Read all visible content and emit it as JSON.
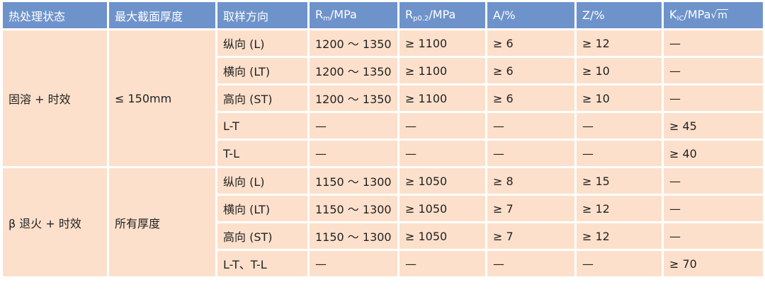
{
  "header": {
    "heat_treatment": "热处理状态",
    "max_section": "最大截面厚度",
    "direction": "取样方向",
    "rm": {
      "main": "R",
      "sub": "m",
      "unit": "/MPa"
    },
    "rp": {
      "main": "R",
      "sub": "p0.2",
      "unit": "/MPa"
    },
    "a": "A/%",
    "z": "Z/%",
    "kic": {
      "main": "K",
      "sub": "IC",
      "unit": "/MPa",
      "sqrt": "√",
      "sqrt_arg": "m"
    }
  },
  "groups": [
    {
      "heat_treatment": "固溶 + 时效",
      "max_section": "≤ 150mm",
      "rows": [
        {
          "direction": "纵向 (L)",
          "rm": "1200 ～ 1350",
          "rp": "≥ 1100",
          "a": "≥ 6",
          "z": "≥ 12",
          "kic": "—"
        },
        {
          "direction": "横向 (LT)",
          "rm": "1200 ～ 1350",
          "rp": "≥ 1100",
          "a": "≥ 6",
          "z": "≥ 10",
          "kic": "—"
        },
        {
          "direction": "高向 (ST)",
          "rm": "1200 ～ 1350",
          "rp": "≥ 1100",
          "a": "≥ 6",
          "z": "≥ 10",
          "kic": "—"
        },
        {
          "direction": "L-T",
          "rm": "—",
          "rp": "—",
          "a": "—",
          "z": "—",
          "kic": "≥ 45"
        },
        {
          "direction": "T-L",
          "rm": "—",
          "rp": "—",
          "a": "—",
          "z": "—",
          "kic": "≥ 40"
        }
      ]
    },
    {
      "heat_treatment": "β 退火 + 时效",
      "max_section": "所有厚度",
      "rows": [
        {
          "direction": "纵向 (L)",
          "rm": "1150 ～ 1300",
          "rp": "≥ 1050",
          "a": "≥ 8",
          "z": "≥ 15",
          "kic": "—"
        },
        {
          "direction": "横向 (LT)",
          "rm": "1150 ～ 1300",
          "rp": "≥ 1050",
          "a": "≥ 7",
          "z": "≥ 12",
          "kic": "—"
        },
        {
          "direction": "高向 (ST)",
          "rm": "1150 ～ 1300",
          "rp": "≥ 1050",
          "a": "≥ 7",
          "z": "≥ 12",
          "kic": "—"
        },
        {
          "direction": "L-T、T-L",
          "rm": "—",
          "rp": "—",
          "a": "—",
          "z": "—",
          "kic": "≥ 70"
        }
      ]
    }
  ],
  "colors": {
    "header_bg": "#6e93cb",
    "body_bg": "#fce0cb",
    "border": "#ffffff"
  }
}
